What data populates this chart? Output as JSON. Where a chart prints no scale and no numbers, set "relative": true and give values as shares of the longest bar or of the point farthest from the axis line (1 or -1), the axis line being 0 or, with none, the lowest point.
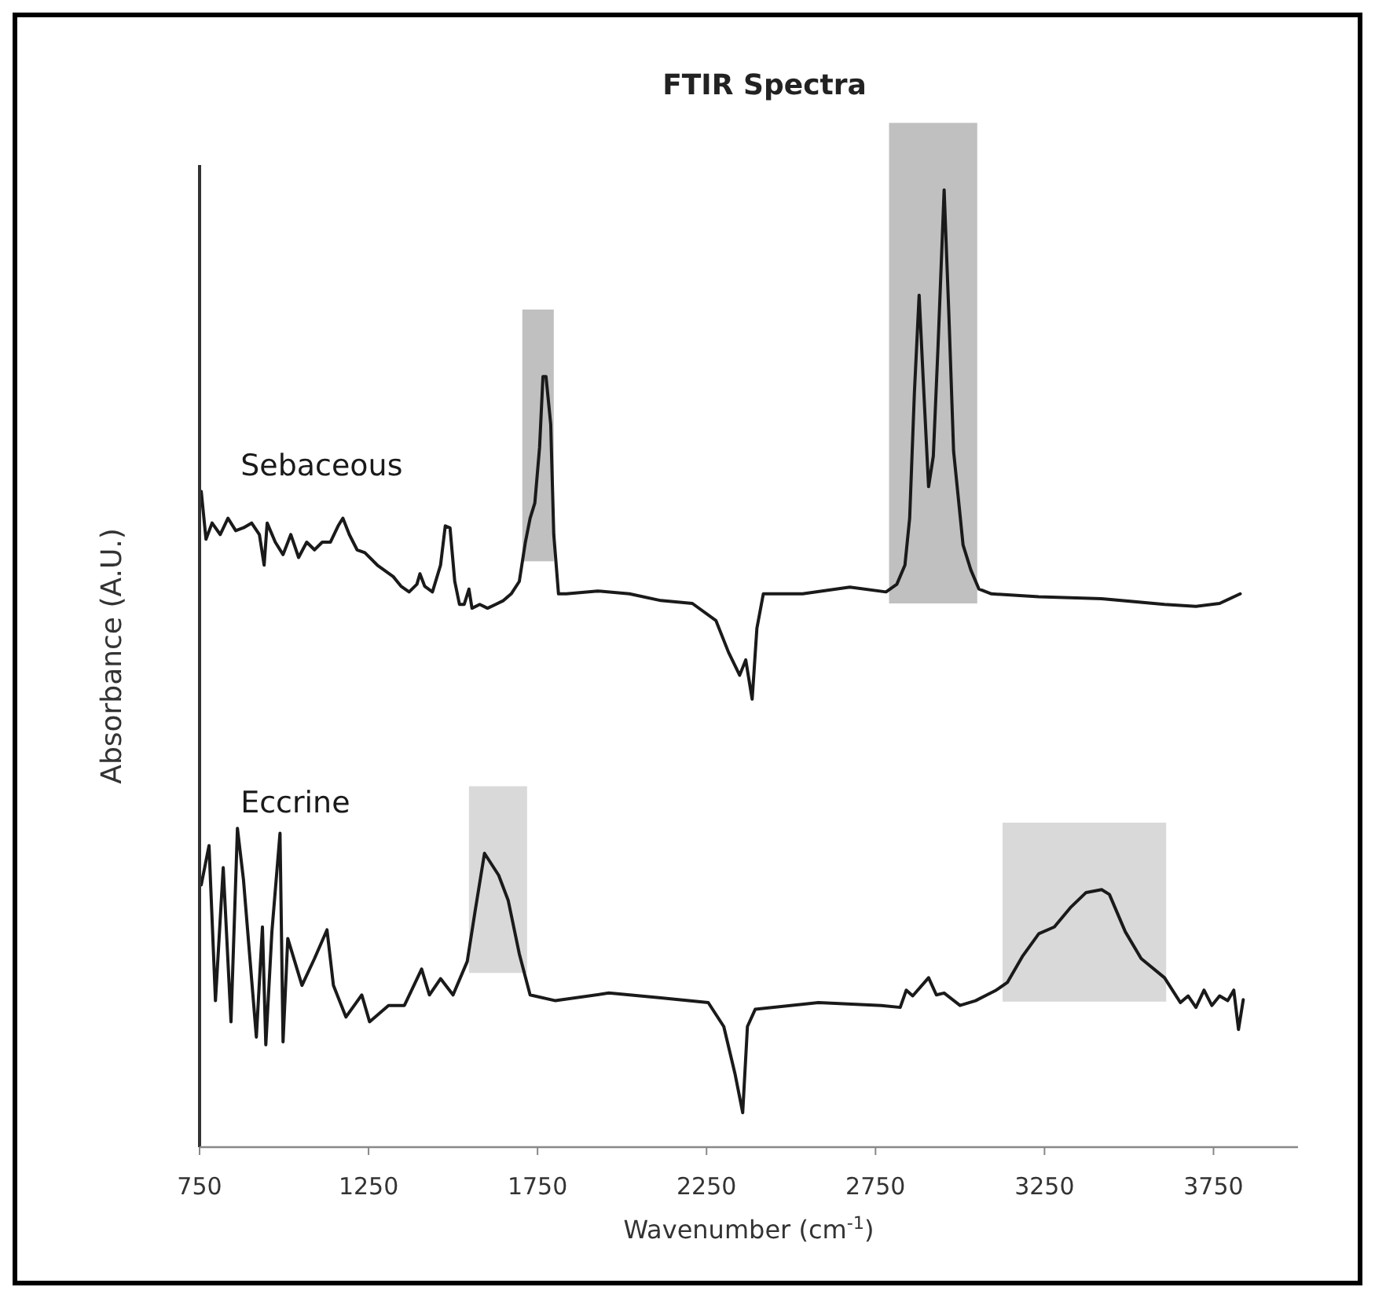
{
  "chart_data": {
    "type": "line",
    "title": "FTIR Spectra",
    "xlabel": "Wavenumber (cm$^{-1}$)",
    "ylabel": "Absorbance (A.U.)",
    "relative": true,
    "xlim": [
      750,
      4000
    ],
    "xticks": [
      750,
      1250,
      1750,
      2250,
      2750,
      3250,
      3750
    ],
    "grid": false,
    "marker": "none",
    "line_style": "solid",
    "series": [
      {
        "name": "Sebaceous",
        "color": "#1a1a1a",
        "x": [
          755,
          769,
          787,
          811,
          834,
          857,
          880,
          904,
          927,
          941,
          950,
          974,
          997,
          1020,
          1043,
          1067,
          1090,
          1113,
          1137,
          1160,
          1174,
          1193,
          1216,
          1239,
          1276,
          1323,
          1346,
          1370,
          1393,
          1402,
          1416,
          1439,
          1463,
          1477,
          1491,
          1505,
          1519,
          1533,
          1547,
          1556,
          1579,
          1602,
          1626,
          1649,
          1672,
          1696,
          1714,
          1728,
          1742,
          1756,
          1766,
          1775,
          1789,
          1798,
          1812,
          1835,
          1928,
          2022,
          2115,
          2208,
          2278,
          2315,
          2348,
          2366,
          2385,
          2399,
          2418,
          2534,
          2674,
          2781,
          2813,
          2837,
          2851,
          2865,
          2879,
          2893,
          2907,
          2921,
          2935,
          2953,
          2967,
          2981,
          3009,
          3032,
          3056,
          3093,
          3233,
          3419,
          3605,
          3698,
          3768,
          3829
        ],
        "values": [
          0.685,
          0.635,
          0.652,
          0.64,
          0.657,
          0.644,
          0.647,
          0.652,
          0.64,
          0.608,
          0.652,
          0.632,
          0.619,
          0.64,
          0.616,
          0.632,
          0.624,
          0.632,
          0.632,
          0.649,
          0.657,
          0.64,
          0.624,
          0.621,
          0.608,
          0.596,
          0.586,
          0.58,
          0.588,
          0.599,
          0.586,
          0.58,
          0.608,
          0.649,
          0.647,
          0.591,
          0.567,
          0.567,
          0.583,
          0.563,
          0.567,
          0.563,
          0.567,
          0.571,
          0.578,
          0.591,
          0.632,
          0.657,
          0.673,
          0.731,
          0.805,
          0.805,
          0.755,
          0.64,
          0.578,
          0.578,
          0.581,
          0.578,
          0.571,
          0.568,
          0.55,
          0.517,
          0.493,
          0.509,
          0.468,
          0.542,
          0.578,
          0.578,
          0.585,
          0.58,
          0.588,
          0.608,
          0.657,
          0.788,
          0.89,
          0.788,
          0.69,
          0.722,
          0.837,
          1.0,
          0.87,
          0.727,
          0.629,
          0.603,
          0.583,
          0.578,
          0.575,
          0.573,
          0.567,
          0.565,
          0.568,
          0.578
        ]
      },
      {
        "name": "Eccrine",
        "color": "#1a1a1a",
        "x": [
          755,
          778,
          797,
          820,
          843,
          862,
          880,
          918,
          936,
          946,
          964,
          988,
          997,
          1011,
          1053,
          1090,
          1127,
          1146,
          1183,
          1230,
          1253,
          1309,
          1356,
          1407,
          1430,
          1463,
          1500,
          1542,
          1565,
          1593,
          1635,
          1663,
          1696,
          1728,
          1803,
          1961,
          2115,
          2255,
          2301,
          2334,
          2357,
          2371,
          2394,
          2581,
          2767,
          2823,
          2841,
          2860,
          2907,
          2930,
          2953,
          3000,
          3046,
          3107,
          3140,
          3186,
          3233,
          3279,
          3326,
          3373,
          3419,
          3442,
          3489,
          3536,
          3605,
          3652,
          3675,
          3698,
          3722,
          3745,
          3768,
          3792,
          3810,
          3824,
          3838
        ],
        "values": [
          0.274,
          0.315,
          0.153,
          0.292,
          0.131,
          0.333,
          0.279,
          0.115,
          0.23,
          0.107,
          0.225,
          0.328,
          0.11,
          0.218,
          0.169,
          0.197,
          0.227,
          0.169,
          0.136,
          0.159,
          0.131,
          0.148,
          0.148,
          0.186,
          0.159,
          0.176,
          0.159,
          0.194,
          0.246,
          0.307,
          0.284,
          0.258,
          0.202,
          0.159,
          0.153,
          0.161,
          0.156,
          0.151,
          0.126,
          0.077,
          0.036,
          0.126,
          0.144,
          0.151,
          0.148,
          0.146,
          0.164,
          0.158,
          0.177,
          0.159,
          0.161,
          0.148,
          0.153,
          0.164,
          0.172,
          0.2,
          0.223,
          0.23,
          0.25,
          0.266,
          0.269,
          0.264,
          0.225,
          0.197,
          0.177,
          0.151,
          0.158,
          0.146,
          0.164,
          0.148,
          0.158,
          0.153,
          0.164,
          0.123,
          0.154
        ]
      }
    ],
    "bands": [
      {
        "axis": "x",
        "from": 1705,
        "to": 1798,
        "color": "#c0c0c0"
      },
      {
        "axis": "x",
        "from": 2790,
        "to": 3051,
        "color": "#c0c0c0"
      },
      {
        "axis": "x",
        "from": 1547,
        "to": 1719,
        "color": "#d9d9d9"
      },
      {
        "axis": "x",
        "from": 3126,
        "to": 3610,
        "color": "#d9d9d9"
      }
    ]
  }
}
